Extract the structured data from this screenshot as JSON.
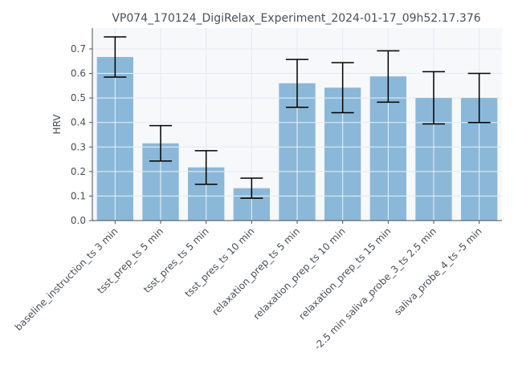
{
  "chart_data": {
    "type": "bar",
    "title": "VP074_170124_DigiRelax_Experiment_2024-01-17_09h52.17.376",
    "xlabel": "",
    "ylabel": "HRV",
    "ylim": [
      0,
      0.785
    ],
    "yticks": [
      "0.0",
      "0.1",
      "0.2",
      "0.3",
      "0.4",
      "0.5",
      "0.6",
      "0.7"
    ],
    "grid": true,
    "categories": [
      "baseline_instruction_ts 3 min",
      "tsst_prep_ts 5 min",
      "tsst_pres_ts 5 min",
      "tsst_pres_ts 10 min",
      "relaxation_prep_ts 5 min",
      "relaxation_prep_ts 10 min",
      "relaxation_prep_ts 15 min",
      "-2.5 min saliva_probe_3_ts 2.5 min",
      "saliva_probe_4_ts -5 min"
    ],
    "values": [
      0.667,
      0.315,
      0.217,
      0.132,
      0.56,
      0.542,
      0.588,
      0.5,
      0.5
    ],
    "error_low": [
      0.585,
      0.243,
      0.148,
      0.091,
      0.462,
      0.44,
      0.483,
      0.394,
      0.4
    ],
    "error_high": [
      0.749,
      0.387,
      0.285,
      0.173,
      0.657,
      0.644,
      0.692,
      0.607,
      0.6
    ],
    "colors": {
      "bar": "#8bb8d9",
      "error_bar": "#000000",
      "grid": "#e6e9ef",
      "plot_background": "#f7f8fa",
      "axis": "#4a4f57"
    }
  }
}
